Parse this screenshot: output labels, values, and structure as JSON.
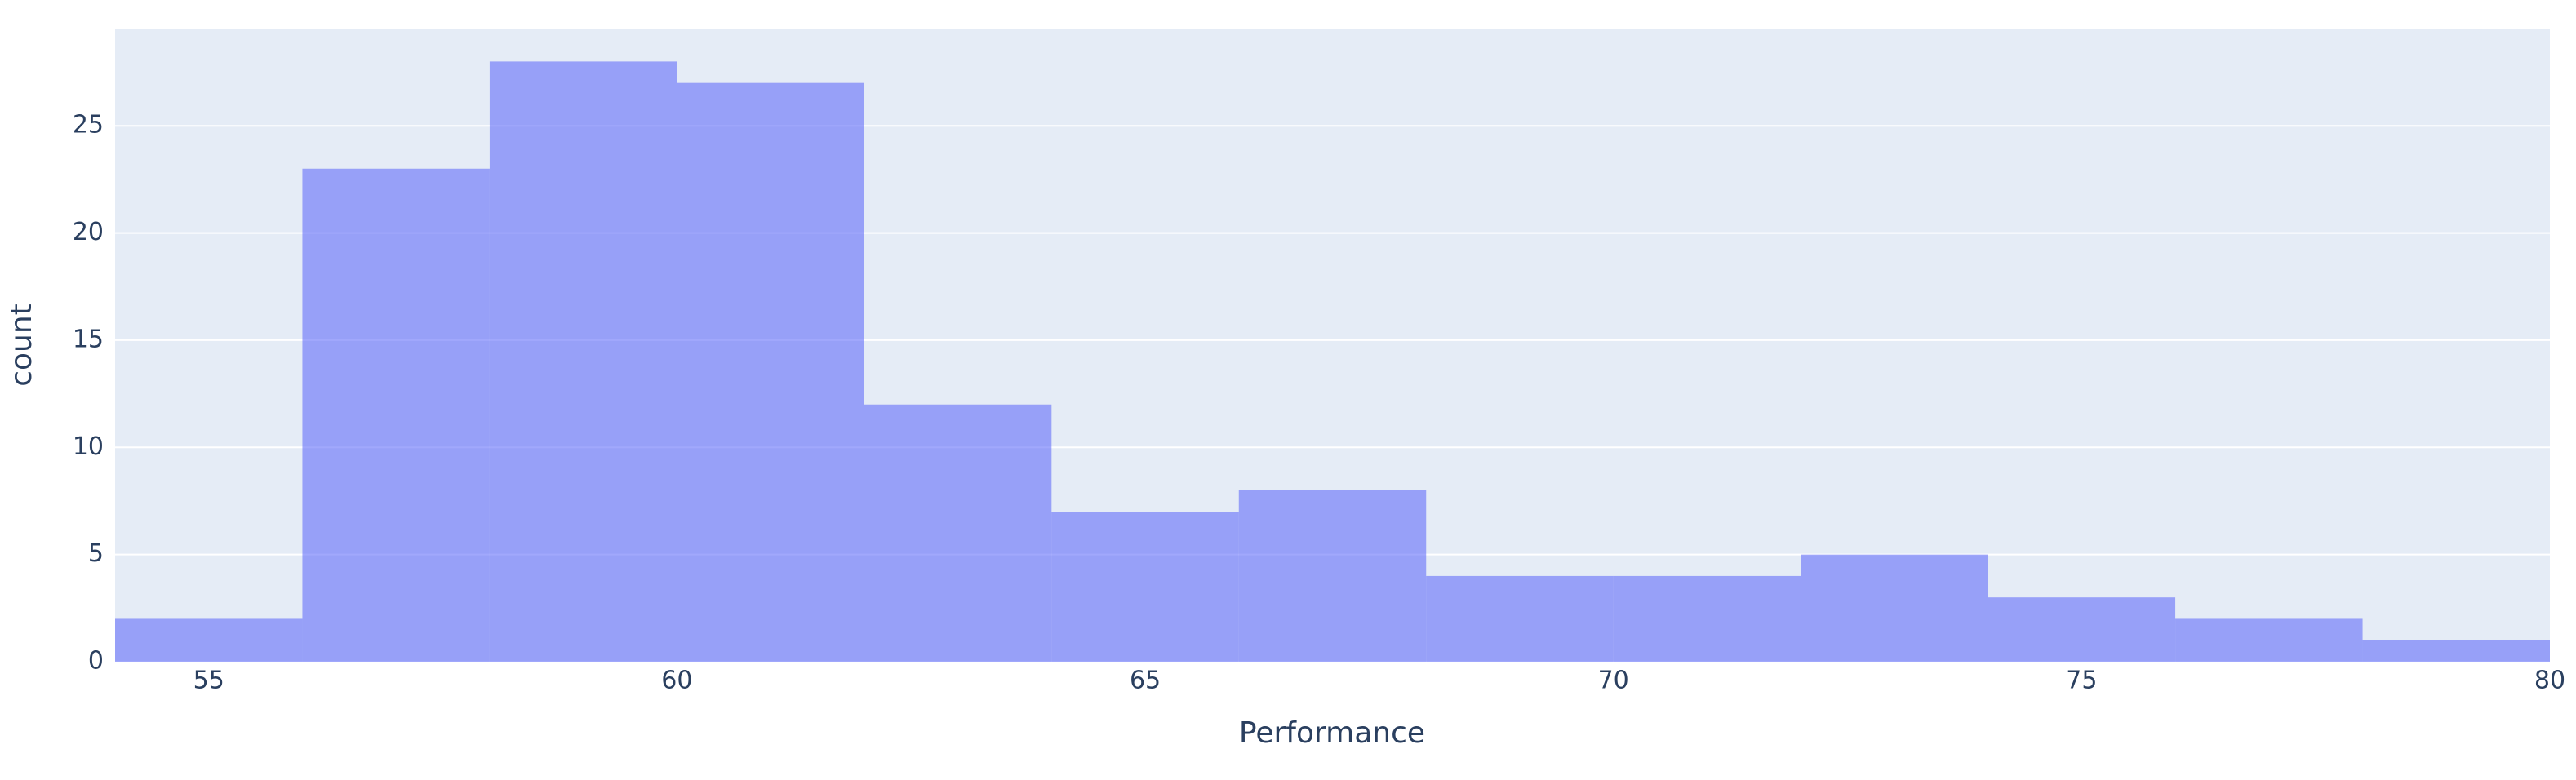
{
  "chart_data": {
    "type": "histogram",
    "x_label": "Performance",
    "y_label": "count",
    "bins": [
      54,
      56,
      58,
      60,
      62,
      64,
      66,
      68,
      70,
      72,
      74,
      76,
      78,
      80
    ],
    "values": [
      2,
      23,
      28,
      27,
      12,
      7,
      8,
      4,
      4,
      5,
      3,
      2,
      1
    ],
    "color": "#636efa",
    "opacity": 0.6,
    "background": "#e5ecf6",
    "xlim": [
      54,
      80
    ],
    "xticks": [
      55,
      60,
      65,
      70,
      75,
      80
    ],
    "ylim": [
      0,
      29.5
    ],
    "yticks": [
      0,
      5,
      10,
      15,
      20,
      25
    ],
    "grid": true
  }
}
